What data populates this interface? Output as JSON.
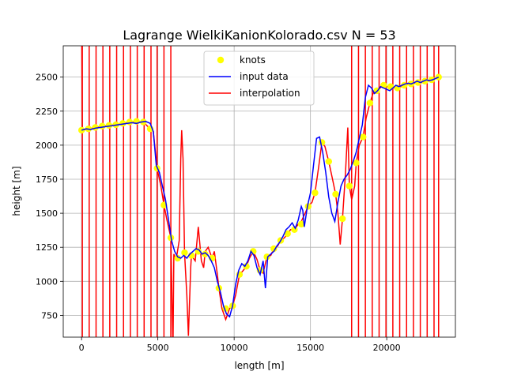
{
  "chart_data": {
    "type": "line",
    "title": "Lagrange WielkiKanionKolorado.csv N = 53",
    "xlabel": "length [m]",
    "ylabel": "height [m]",
    "xlim": [
      -1200,
      24500
    ],
    "ylim": [
      590,
      2730
    ],
    "x_ticks": [
      0,
      5000,
      10000,
      15000,
      20000
    ],
    "y_ticks": [
      750,
      1000,
      1250,
      1500,
      1750,
      2000,
      2250,
      2500
    ],
    "grid": true,
    "legend": {
      "position": "top-center",
      "entries": [
        "knots",
        "input data",
        "interpolation"
      ]
    },
    "colors": {
      "knots": "#ffff00",
      "input_data": "#0000ff",
      "interpolation": "#ff0000",
      "grid": "#b0b0b0"
    },
    "series": [
      {
        "name": "knots",
        "type": "scatter",
        "x": [
          0,
          450,
          900,
          1350,
          1800,
          2250,
          2700,
          3150,
          3600,
          4050,
          4500,
          4950,
          5400,
          5850,
          6300,
          6750,
          7200,
          7650,
          8100,
          8550,
          9000,
          9450,
          9900,
          10350,
          10800,
          11250,
          11700,
          12150,
          12600,
          13050,
          13500,
          13950,
          14400,
          14850,
          15300,
          15750,
          16200,
          16650,
          17100,
          17550,
          18000,
          18450,
          18900,
          19350,
          19800,
          20250,
          20700,
          21150,
          21600,
          22050,
          22500,
          22950,
          23400
        ],
        "y": [
          2110,
          2120,
          2130,
          2140,
          2145,
          2150,
          2160,
          2170,
          2175,
          2170,
          2120,
          1830,
          1560,
          1320,
          1170,
          1210,
          1190,
          1220,
          1200,
          1170,
          950,
          800,
          820,
          1050,
          1110,
          1220,
          1080,
          1180,
          1240,
          1300,
          1350,
          1380,
          1420,
          1550,
          1650,
          2020,
          1880,
          1640,
          1460,
          1700,
          1870,
          2060,
          2310,
          2400,
          2440,
          2430,
          2420,
          2440,
          2450,
          2460,
          2470,
          2480,
          2500
        ]
      },
      {
        "name": "input data",
        "type": "line",
        "x": [
          0,
          300,
          600,
          900,
          1200,
          1500,
          1800,
          2100,
          2400,
          2700,
          3000,
          3300,
          3600,
          3900,
          4200,
          4500,
          4700,
          4900,
          5100,
          5300,
          5500,
          5700,
          5900,
          6100,
          6300,
          6500,
          6700,
          6900,
          7100,
          7300,
          7500,
          7700,
          7900,
          8100,
          8300,
          8500,
          8700,
          8900,
          9100,
          9300,
          9500,
          9700,
          9900,
          10100,
          10300,
          10500,
          10700,
          10900,
          11100,
          11300,
          11500,
          11700,
          11900,
          12050,
          12200,
          12400,
          12600,
          12800,
          13000,
          13200,
          13400,
          13600,
          13800,
          14000,
          14200,
          14400,
          14500,
          14600,
          14800,
          15000,
          15200,
          15400,
          15600,
          15800,
          16000,
          16200,
          16400,
          16600,
          16800,
          17000,
          17200,
          17400,
          17600,
          17800,
          18000,
          18200,
          18400,
          18600,
          18800,
          19000,
          19200,
          19400,
          19600,
          19800,
          20000,
          20200,
          20400,
          20600,
          20800,
          21000,
          21200,
          21400,
          21600,
          21800,
          22000,
          22200,
          22400,
          22600,
          22800,
          23000,
          23200,
          23400
        ],
        "y": [
          2110,
          2120,
          2115,
          2125,
          2130,
          2135,
          2140,
          2145,
          2150,
          2155,
          2160,
          2165,
          2160,
          2170,
          2175,
          2160,
          2100,
          1850,
          1800,
          1700,
          1600,
          1450,
          1300,
          1220,
          1180,
          1170,
          1190,
          1170,
          1200,
          1220,
          1240,
          1230,
          1200,
          1210,
          1190,
          1150,
          1100,
          1000,
          920,
          820,
          760,
          740,
          820,
          980,
          1080,
          1130,
          1110,
          1150,
          1220,
          1190,
          1100,
          1050,
          1150,
          950,
          1180,
          1200,
          1220,
          1260,
          1290,
          1330,
          1380,
          1400,
          1430,
          1390,
          1450,
          1550,
          1520,
          1400,
          1550,
          1650,
          1850,
          2050,
          2060,
          1950,
          1800,
          1620,
          1500,
          1440,
          1580,
          1700,
          1750,
          1780,
          1820,
          1880,
          1950,
          2050,
          2150,
          2350,
          2440,
          2420,
          2380,
          2400,
          2430,
          2420,
          2410,
          2400,
          2420,
          2440,
          2430,
          2440,
          2450,
          2455,
          2450,
          2460,
          2470,
          2460,
          2470,
          2480,
          2475,
          2480,
          2490,
          2500
        ]
      },
      {
        "name": "interpolation",
        "type": "line",
        "note_clip": true,
        "x": [
          0,
          50,
          450,
          900,
          1350,
          1800,
          2250,
          2700,
          3150,
          3600,
          4050,
          4500,
          4700,
          4950,
          5200,
          5400,
          5600,
          5850,
          5990,
          6050,
          6200,
          6400,
          6500,
          6560,
          6650,
          6750,
          6900,
          7000,
          7150,
          7200,
          7450,
          7650,
          7850,
          8000,
          8100,
          8300,
          8550,
          8700,
          8900,
          9000,
          9200,
          9450,
          9700,
          9900,
          10100,
          10350,
          10600,
          10800,
          11000,
          11250,
          11500,
          11700,
          11900,
          12150,
          12400,
          12600,
          12850,
          13050,
          13300,
          13500,
          13700,
          13950,
          14200,
          14400,
          14650,
          14850,
          15100,
          15300,
          15550,
          15750,
          15950,
          16200,
          16450,
          16650,
          16800,
          16950,
          17100,
          17300,
          17450,
          17550,
          17700,
          17900,
          18000,
          18200,
          18450,
          18650,
          18900,
          19100,
          19350,
          19550,
          19800,
          20000,
          20250,
          20500,
          20700,
          20950,
          21150,
          21400,
          21600,
          21850,
          22050,
          22300,
          22500,
          22700,
          22950,
          23200,
          23400
        ],
        "y": [
          3000,
          2110,
          2120,
          2130,
          2140,
          2145,
          2150,
          2160,
          2170,
          2175,
          2170,
          2120,
          2100,
          1830,
          1700,
          1560,
          1450,
          1320,
          500,
          1200,
          1160,
          1300,
          1900,
          2110,
          1900,
          1210,
          900,
          600,
          1100,
          1190,
          1150,
          1400,
          1150,
          1100,
          1220,
          1250,
          1170,
          1220,
          1050,
          950,
          800,
          720,
          800,
          820,
          900,
          1050,
          1080,
          1110,
          1170,
          1220,
          1160,
          1080,
          1060,
          1180,
          1190,
          1240,
          1260,
          1300,
          1320,
          1350,
          1380,
          1380,
          1420,
          1440,
          1500,
          1550,
          1580,
          1650,
          1850,
          2020,
          1990,
          1880,
          1750,
          1640,
          1500,
          1270,
          1460,
          1800,
          2130,
          1700,
          1600,
          1700,
          1870,
          2000,
          2060,
          2200,
          2310,
          2380,
          2400,
          2420,
          2440,
          2430,
          2430,
          2420,
          2420,
          2430,
          2440,
          2450,
          2450,
          2455,
          2460,
          2460,
          2470,
          2470,
          2480,
          2490,
          2500
        ]
      }
    ]
  }
}
